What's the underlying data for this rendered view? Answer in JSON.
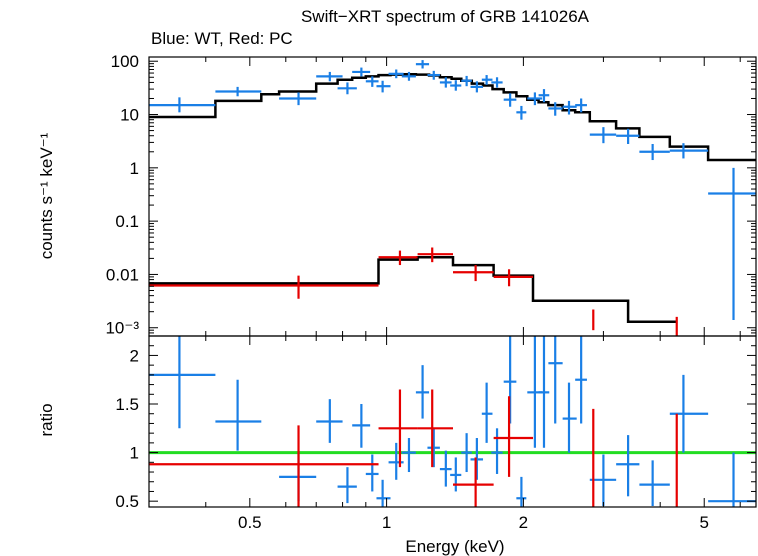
{
  "chart_data": {
    "type": "scatter",
    "title": "Swift−XRT spectrum of GRB 141026A",
    "subtitle": "Blue: WT, Red: PC",
    "xlabel": "Energy (keV)",
    "xscale": "log",
    "xlim": [
      0.3,
      6.5
    ],
    "x_ticklabels": [
      "0.5",
      "1",
      "2",
      "5"
    ],
    "colors": {
      "WT": "#1a7fe6",
      "PC": "#e60000",
      "model": "#000000",
      "unity": "#22dd22"
    },
    "panels": [
      {
        "name": "spectrum",
        "ylabel": "counts s⁻¹ keV⁻¹",
        "yscale": "log",
        "ylim": [
          0.0007,
          120
        ],
        "y_ticklabels": [
          "100",
          "10",
          "1",
          "0.1",
          "0.01",
          "10⁻³"
        ],
        "series": [
          {
            "key": "WT",
            "points": [
              {
                "x": 0.35,
                "xlo": 0.3,
                "xhi": 0.42,
                "y": 15,
                "ylo": 11,
                "yhi": 21
              },
              {
                "x": 0.47,
                "xlo": 0.42,
                "xhi": 0.53,
                "y": 27,
                "ylo": 22,
                "yhi": 33
              },
              {
                "x": 0.64,
                "xlo": 0.58,
                "xhi": 0.7,
                "y": 20,
                "ylo": 15,
                "yhi": 26
              },
              {
                "x": 0.75,
                "xlo": 0.7,
                "xhi": 0.8,
                "y": 52,
                "ylo": 42,
                "yhi": 63
              },
              {
                "x": 0.82,
                "xlo": 0.78,
                "xhi": 0.86,
                "y": 31,
                "ylo": 24,
                "yhi": 40
              },
              {
                "x": 0.88,
                "xlo": 0.84,
                "xhi": 0.92,
                "y": 63,
                "ylo": 52,
                "yhi": 76
              },
              {
                "x": 0.93,
                "xlo": 0.9,
                "xhi": 0.96,
                "y": 42,
                "ylo": 33,
                "yhi": 52
              },
              {
                "x": 0.98,
                "xlo": 0.95,
                "xhi": 1.02,
                "y": 34,
                "ylo": 26,
                "yhi": 43
              },
              {
                "x": 1.05,
                "xlo": 1.01,
                "xhi": 1.09,
                "y": 58,
                "ylo": 48,
                "yhi": 70
              },
              {
                "x": 1.12,
                "xlo": 1.08,
                "xhi": 1.16,
                "y": 52,
                "ylo": 43,
                "yhi": 63
              },
              {
                "x": 1.2,
                "xlo": 1.16,
                "xhi": 1.24,
                "y": 88,
                "ylo": 73,
                "yhi": 105
              },
              {
                "x": 1.27,
                "xlo": 1.23,
                "xhi": 1.31,
                "y": 55,
                "ylo": 45,
                "yhi": 66
              },
              {
                "x": 1.35,
                "xlo": 1.31,
                "xhi": 1.39,
                "y": 40,
                "ylo": 32,
                "yhi": 50
              },
              {
                "x": 1.42,
                "xlo": 1.38,
                "xhi": 1.46,
                "y": 35,
                "ylo": 28,
                "yhi": 44
              },
              {
                "x": 1.5,
                "xlo": 1.46,
                "xhi": 1.54,
                "y": 43,
                "ylo": 34,
                "yhi": 53
              },
              {
                "x": 1.58,
                "xlo": 1.53,
                "xhi": 1.63,
                "y": 33,
                "ylo": 26,
                "yhi": 42
              },
              {
                "x": 1.66,
                "xlo": 1.62,
                "xhi": 1.71,
                "y": 45,
                "ylo": 36,
                "yhi": 55
              },
              {
                "x": 1.75,
                "xlo": 1.7,
                "xhi": 1.8,
                "y": 40,
                "ylo": 32,
                "yhi": 50
              },
              {
                "x": 1.87,
                "xlo": 1.81,
                "xhi": 1.93,
                "y": 19,
                "ylo": 14,
                "yhi": 25
              },
              {
                "x": 1.98,
                "xlo": 1.93,
                "xhi": 2.03,
                "y": 11,
                "ylo": 8,
                "yhi": 14.5
              },
              {
                "x": 2.12,
                "xlo": 2.04,
                "xhi": 2.2,
                "y": 20,
                "ylo": 15,
                "yhi": 26
              },
              {
                "x": 2.22,
                "xlo": 2.16,
                "xhi": 2.28,
                "y": 23,
                "ylo": 17,
                "yhi": 30
              },
              {
                "x": 2.35,
                "xlo": 2.27,
                "xhi": 2.44,
                "y": 13,
                "ylo": 9.5,
                "yhi": 17
              },
              {
                "x": 2.52,
                "xlo": 2.44,
                "xhi": 2.62,
                "y": 14,
                "ylo": 10,
                "yhi": 18
              },
              {
                "x": 2.68,
                "xlo": 2.6,
                "xhi": 2.76,
                "y": 15,
                "ylo": 11,
                "yhi": 20
              },
              {
                "x": 3.0,
                "xlo": 2.8,
                "xhi": 3.2,
                "y": 4.2,
                "ylo": 2.9,
                "yhi": 5.8
              },
              {
                "x": 3.4,
                "xlo": 3.2,
                "xhi": 3.6,
                "y": 4.0,
                "ylo": 2.8,
                "yhi": 5.4
              },
              {
                "x": 3.85,
                "xlo": 3.6,
                "xhi": 4.2,
                "y": 2.0,
                "ylo": 1.4,
                "yhi": 2.8
              },
              {
                "x": 4.5,
                "xlo": 4.2,
                "xhi": 5.1,
                "y": 2.1,
                "ylo": 1.5,
                "yhi": 2.9
              },
              {
                "x": 5.8,
                "xlo": 5.1,
                "xhi": 6.5,
                "y": 0.33,
                "ylo": 0.0014,
                "yhi": 1.0
              }
            ]
          },
          {
            "key": "PC",
            "points": [
              {
                "x": 0.64,
                "xlo": 0.3,
                "xhi": 0.96,
                "y": 0.0062,
                "ylo": 0.0035,
                "yhi": 0.0095
              },
              {
                "x": 1.07,
                "xlo": 0.96,
                "xhi": 1.17,
                "y": 0.021,
                "ylo": 0.015,
                "yhi": 0.028
              },
              {
                "x": 1.26,
                "xlo": 1.17,
                "xhi": 1.4,
                "y": 0.024,
                "ylo": 0.017,
                "yhi": 0.032
              },
              {
                "x": 1.57,
                "xlo": 1.4,
                "xhi": 1.72,
                "y": 0.011,
                "ylo": 0.0075,
                "yhi": 0.015
              },
              {
                "x": 1.86,
                "xlo": 1.72,
                "xhi": 2.1,
                "y": 0.009,
                "ylo": 0.006,
                "yhi": 0.0125
              },
              {
                "x": 2.85,
                "xlo": 2.85,
                "xhi": 2.85,
                "y": 0.0014,
                "ylo": 0.0009,
                "yhi": 0.0022
              },
              {
                "x": 4.35,
                "xlo": 4.35,
                "xhi": 4.35,
                "y": 0.001,
                "ylo": 0.0006,
                "yhi": 0.0016
              }
            ]
          }
        ],
        "models": [
          {
            "key": "WT",
            "edges": [
              0.3,
              0.42,
              0.53,
              0.58,
              0.7,
              0.78,
              0.84,
              0.9,
              0.96,
              1.02,
              1.09,
              1.16,
              1.24,
              1.31,
              1.39,
              1.46,
              1.54,
              1.63,
              1.71,
              1.81,
              1.93,
              2.04,
              2.16,
              2.27,
              2.44,
              2.6,
              2.8,
              3.2,
              3.6,
              4.2,
              5.1,
              6.5
            ],
            "values": [
              9,
              18,
              24,
              27,
              38,
              45,
              49,
              52,
              55,
              56,
              57,
              56,
              54,
              50,
              47,
              43,
              38,
              35,
              30,
              26,
              22,
              19,
              17,
              15,
              12,
              11,
              7.5,
              5.5,
              3.8,
              2.5,
              1.4
            ]
          },
          {
            "key": "PC",
            "edges": [
              0.3,
              0.96,
              1.17,
              1.4,
              1.72,
              2.1,
              3.4,
              4.35
            ],
            "values": [
              0.0068,
              0.019,
              0.021,
              0.015,
              0.0095,
              0.0032,
              0.0013
            ]
          }
        ]
      },
      {
        "name": "ratio",
        "ylabel": "ratio",
        "yscale": "linear",
        "ylim": [
          0.44,
          2.2
        ],
        "y_ticklabels": [
          "0.5",
          "1",
          "1.5",
          "2"
        ],
        "reference_line": 1,
        "series": [
          {
            "key": "WT",
            "points": [
              {
                "x": 0.35,
                "xlo": 0.3,
                "xhi": 0.42,
                "y": 1.8,
                "ylo": 1.25,
                "yhi": 2.25
              },
              {
                "x": 0.47,
                "xlo": 0.42,
                "xhi": 0.53,
                "y": 1.32,
                "ylo": 1.02,
                "yhi": 1.75
              },
              {
                "x": 0.64,
                "xlo": 0.58,
                "xhi": 0.7,
                "y": 0.75,
                "ylo": 0.5,
                "yhi": 1.0
              },
              {
                "x": 0.75,
                "xlo": 0.7,
                "xhi": 0.8,
                "y": 1.32,
                "ylo": 1.1,
                "yhi": 1.55
              },
              {
                "x": 0.82,
                "xlo": 0.78,
                "xhi": 0.86,
                "y": 0.65,
                "ylo": 0.48,
                "yhi": 0.85
              },
              {
                "x": 0.88,
                "xlo": 0.84,
                "xhi": 0.92,
                "y": 1.28,
                "ylo": 1.05,
                "yhi": 1.5
              },
              {
                "x": 0.93,
                "xlo": 0.9,
                "xhi": 0.96,
                "y": 0.78,
                "ylo": 0.6,
                "yhi": 0.98
              },
              {
                "x": 0.98,
                "xlo": 0.95,
                "xhi": 1.02,
                "y": 0.53,
                "ylo": 0.42,
                "yhi": 0.72
              },
              {
                "x": 1.05,
                "xlo": 1.01,
                "xhi": 1.09,
                "y": 0.9,
                "ylo": 0.72,
                "yhi": 1.1
              },
              {
                "x": 1.12,
                "xlo": 1.08,
                "xhi": 1.16,
                "y": 1.0,
                "ylo": 0.8,
                "yhi": 1.15
              },
              {
                "x": 1.2,
                "xlo": 1.16,
                "xhi": 1.24,
                "y": 1.62,
                "ylo": 1.35,
                "yhi": 1.9
              },
              {
                "x": 1.27,
                "xlo": 1.23,
                "xhi": 1.31,
                "y": 1.05,
                "ylo": 0.85,
                "yhi": 1.25
              },
              {
                "x": 1.35,
                "xlo": 1.31,
                "xhi": 1.39,
                "y": 0.83,
                "ylo": 0.65,
                "yhi": 1.02
              },
              {
                "x": 1.42,
                "xlo": 1.38,
                "xhi": 1.46,
                "y": 0.77,
                "ylo": 0.6,
                "yhi": 0.95
              },
              {
                "x": 1.5,
                "xlo": 1.46,
                "xhi": 1.54,
                "y": 1.0,
                "ylo": 0.8,
                "yhi": 1.2
              },
              {
                "x": 1.58,
                "xlo": 1.53,
                "xhi": 1.63,
                "y": 0.93,
                "ylo": 0.72,
                "yhi": 1.15
              },
              {
                "x": 1.66,
                "xlo": 1.62,
                "xhi": 1.71,
                "y": 1.4,
                "ylo": 1.1,
                "yhi": 1.72
              },
              {
                "x": 1.75,
                "xlo": 1.7,
                "xhi": 1.8,
                "y": 1.0,
                "ylo": 0.78,
                "yhi": 1.25
              },
              {
                "x": 1.87,
                "xlo": 1.81,
                "xhi": 1.93,
                "y": 1.73,
                "ylo": 1.3,
                "yhi": 2.2
              },
              {
                "x": 1.98,
                "xlo": 1.93,
                "xhi": 2.03,
                "y": 0.53,
                "ylo": 0.42,
                "yhi": 0.75
              },
              {
                "x": 2.12,
                "xlo": 2.04,
                "xhi": 2.2,
                "y": 1.62,
                "ylo": 1.05,
                "yhi": 2.2
              },
              {
                "x": 2.22,
                "xlo": 2.16,
                "xhi": 2.28,
                "y": 1.62,
                "ylo": 1.05,
                "yhi": 2.2
              },
              {
                "x": 2.35,
                "xlo": 2.27,
                "xhi": 2.44,
                "y": 1.92,
                "ylo": 1.3,
                "yhi": 2.2
              },
              {
                "x": 2.52,
                "xlo": 2.44,
                "xhi": 2.62,
                "y": 1.35,
                "ylo": 1.0,
                "yhi": 1.72
              },
              {
                "x": 2.68,
                "xlo": 2.6,
                "xhi": 2.76,
                "y": 1.75,
                "ylo": 1.3,
                "yhi": 2.2
              },
              {
                "x": 3.0,
                "xlo": 2.8,
                "xhi": 3.2,
                "y": 0.72,
                "ylo": 0.45,
                "yhi": 0.98
              },
              {
                "x": 3.4,
                "xlo": 3.2,
                "xhi": 3.6,
                "y": 0.88,
                "ylo": 0.55,
                "yhi": 1.18
              },
              {
                "x": 3.85,
                "xlo": 3.6,
                "xhi": 4.2,
                "y": 0.67,
                "ylo": 0.45,
                "yhi": 0.92
              },
              {
                "x": 4.5,
                "xlo": 4.2,
                "xhi": 5.1,
                "y": 1.4,
                "ylo": 1.0,
                "yhi": 1.8
              },
              {
                "x": 5.8,
                "xlo": 5.1,
                "xhi": 6.5,
                "y": 0.5,
                "ylo": 0.44,
                "yhi": 1.0
              }
            ]
          },
          {
            "key": "PC",
            "points": [
              {
                "x": 0.64,
                "xlo": 0.3,
                "xhi": 0.96,
                "y": 0.88,
                "ylo": 0.44,
                "yhi": 1.28
              },
              {
                "x": 1.07,
                "xlo": 0.96,
                "xhi": 1.17,
                "y": 1.25,
                "ylo": 0.85,
                "yhi": 1.65
              },
              {
                "x": 1.26,
                "xlo": 1.17,
                "xhi": 1.4,
                "y": 1.25,
                "ylo": 0.85,
                "yhi": 1.65
              },
              {
                "x": 1.57,
                "xlo": 1.4,
                "xhi": 1.72,
                "y": 0.67,
                "ylo": 0.44,
                "yhi": 0.95
              },
              {
                "x": 1.86,
                "xlo": 1.72,
                "xhi": 2.1,
                "y": 1.15,
                "ylo": 0.75,
                "yhi": 1.58
              },
              {
                "x": 2.85,
                "xlo": 2.85,
                "xhi": 2.85,
                "y": 0.75,
                "ylo": 0.44,
                "yhi": 1.45
              },
              {
                "x": 4.35,
                "xlo": 4.35,
                "xhi": 4.35,
                "y": 0.75,
                "ylo": 0.44,
                "yhi": 1.4
              }
            ]
          }
        ]
      }
    ]
  }
}
